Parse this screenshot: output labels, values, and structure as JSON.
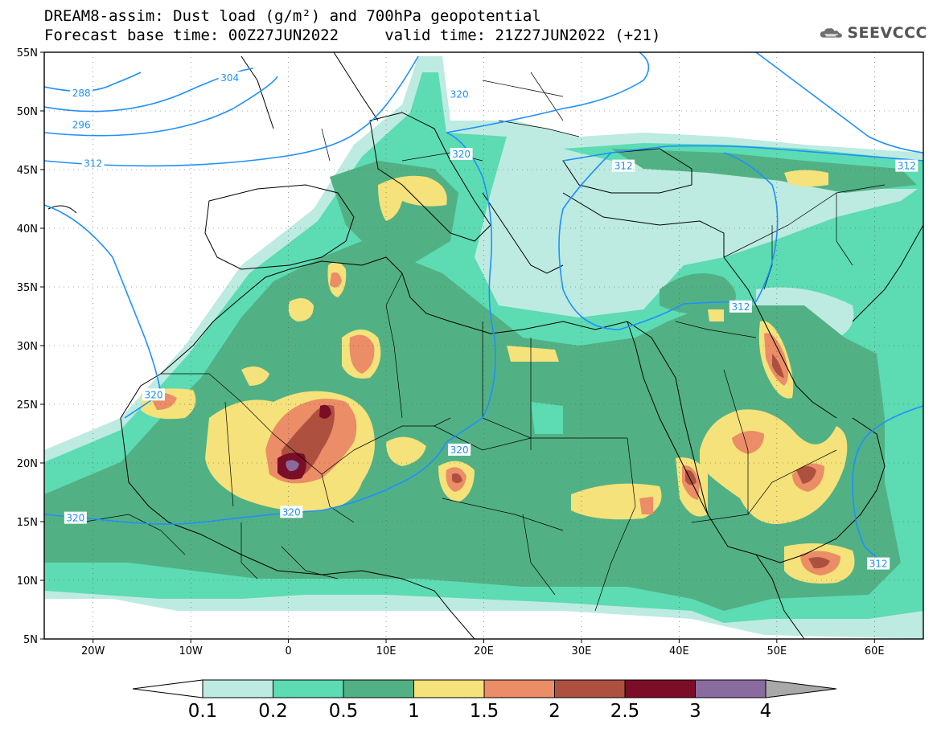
{
  "header": {
    "title_line1": "DREAM8-assim: Dust load (g/m²) and 700hPa geopotential",
    "title_line2": "Forecast base time: 00Z27JUN2022     valid time: 21Z27JUN2022 (+21)",
    "logo_text": "SEEVCCC",
    "logo_icon": "cloud-icon"
  },
  "map": {
    "projection": "cylindrical",
    "lon_range": [
      -25,
      65
    ],
    "lat_range": [
      5,
      55
    ],
    "lat_ticks": [
      {
        "value": 55,
        "label": "55N"
      },
      {
        "value": 50,
        "label": "50N"
      },
      {
        "value": 45,
        "label": "45N"
      },
      {
        "value": 40,
        "label": "40N"
      },
      {
        "value": 35,
        "label": "35N"
      },
      {
        "value": 30,
        "label": "30N"
      },
      {
        "value": 25,
        "label": "25N"
      },
      {
        "value": 20,
        "label": "20N"
      },
      {
        "value": 15,
        "label": "15N"
      },
      {
        "value": 10,
        "label": "10N"
      },
      {
        "value": 5,
        "label": "5N"
      }
    ],
    "lon_ticks": [
      {
        "value": -20,
        "label": "20W"
      },
      {
        "value": -10,
        "label": "10W"
      },
      {
        "value": 0,
        "label": "0"
      },
      {
        "value": 10,
        "label": "10E"
      },
      {
        "value": 20,
        "label": "20E"
      },
      {
        "value": 30,
        "label": "30E"
      },
      {
        "value": 40,
        "label": "40E"
      },
      {
        "value": 50,
        "label": "50E"
      },
      {
        "value": 60,
        "label": "60E"
      }
    ],
    "gridlines": "dotted",
    "contour_labels": [
      {
        "text": "288",
        "lon": -21.2,
        "lat": 51.5
      },
      {
        "text": "296",
        "lon": -21.2,
        "lat": 48.8
      },
      {
        "text": "304",
        "lon": -6,
        "lat": 52.8
      },
      {
        "text": "312",
        "lon": -20,
        "lat": 45.5
      },
      {
        "text": "320",
        "lon": 17.5,
        "lat": 51.4
      },
      {
        "text": "320",
        "lon": 17.7,
        "lat": 46.3
      },
      {
        "text": "312",
        "lon": 34.3,
        "lat": 45.3
      },
      {
        "text": "312",
        "lon": 63.3,
        "lat": 45.3
      },
      {
        "text": "312",
        "lon": 46.3,
        "lat": 33.3
      },
      {
        "text": "320",
        "lon": -13.8,
        "lat": 25.8
      },
      {
        "text": "320",
        "lon": 17.5,
        "lat": 21.1
      },
      {
        "text": "320",
        "lon": -21.8,
        "lat": 15.3
      },
      {
        "text": "320",
        "lon": 0.3,
        "lat": 15.8
      },
      {
        "text": "312",
        "lon": 60.4,
        "lat": 11.4
      }
    ]
  },
  "colorbar": {
    "labels": [
      "0.1",
      "0.2",
      "0.5",
      "1",
      "1.5",
      "2",
      "2.5",
      "3",
      "4"
    ],
    "colors": [
      "#bdebe1",
      "#5ddbb3",
      "#52b184",
      "#f5e27a",
      "#eb8d66",
      "#ae5040",
      "#7b0d26",
      "#8a6ba0"
    ],
    "under_color": "#ffffff",
    "over_color": "#a9a9a9"
  }
}
